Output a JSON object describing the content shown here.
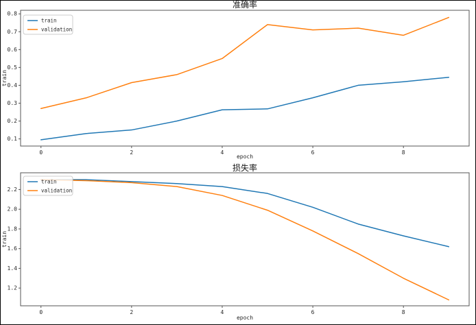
{
  "figure": {
    "background": "#ffffff",
    "border_color": "#000000"
  },
  "chart_data": [
    {
      "type": "line",
      "title": "准确率",
      "xlabel": "epoch",
      "ylabel": "train",
      "grid": false,
      "legend_position": "upper-left",
      "x": [
        0,
        1,
        2,
        3,
        4,
        5,
        6,
        7,
        8,
        9
      ],
      "series": [
        {
          "name": "train",
          "color": "#1f77b4",
          "values": [
            0.095,
            0.13,
            0.15,
            0.2,
            0.263,
            0.268,
            0.33,
            0.4,
            0.42,
            0.445
          ]
        },
        {
          "name": "validation",
          "color": "#ff7f0e",
          "values": [
            0.27,
            0.33,
            0.415,
            0.46,
            0.55,
            0.74,
            0.71,
            0.72,
            0.68,
            0.78
          ]
        }
      ],
      "xlim": [
        -0.45,
        9.45
      ],
      "ylim": [
        0.06,
        0.82
      ],
      "xticks": [
        0,
        2,
        4,
        6,
        8
      ],
      "yticks": [
        0.1,
        0.2,
        0.3,
        0.4,
        0.5,
        0.6,
        0.7,
        0.8
      ],
      "ytick_decimals": 1
    },
    {
      "type": "line",
      "title": "损失率",
      "xlabel": "epoch",
      "ylabel": "train",
      "grid": false,
      "legend_position": "upper-left",
      "x": [
        0,
        1,
        2,
        3,
        4,
        5,
        6,
        7,
        8,
        9
      ],
      "series": [
        {
          "name": "train",
          "color": "#1f77b4",
          "values": [
            2.3,
            2.3,
            2.28,
            2.26,
            2.23,
            2.16,
            2.02,
            1.85,
            1.73,
            1.62
          ]
        },
        {
          "name": "validation",
          "color": "#ff7f0e",
          "values": [
            2.3,
            2.29,
            2.27,
            2.23,
            2.14,
            1.99,
            1.78,
            1.55,
            1.3,
            1.08
          ]
        }
      ],
      "xlim": [
        -0.45,
        9.45
      ],
      "ylim": [
        1.02,
        2.37
      ],
      "xticks": [
        0,
        2,
        4,
        6,
        8
      ],
      "yticks": [
        1.2,
        1.4,
        1.6,
        1.8,
        2.0,
        2.2
      ],
      "ytick_decimals": 1
    }
  ]
}
